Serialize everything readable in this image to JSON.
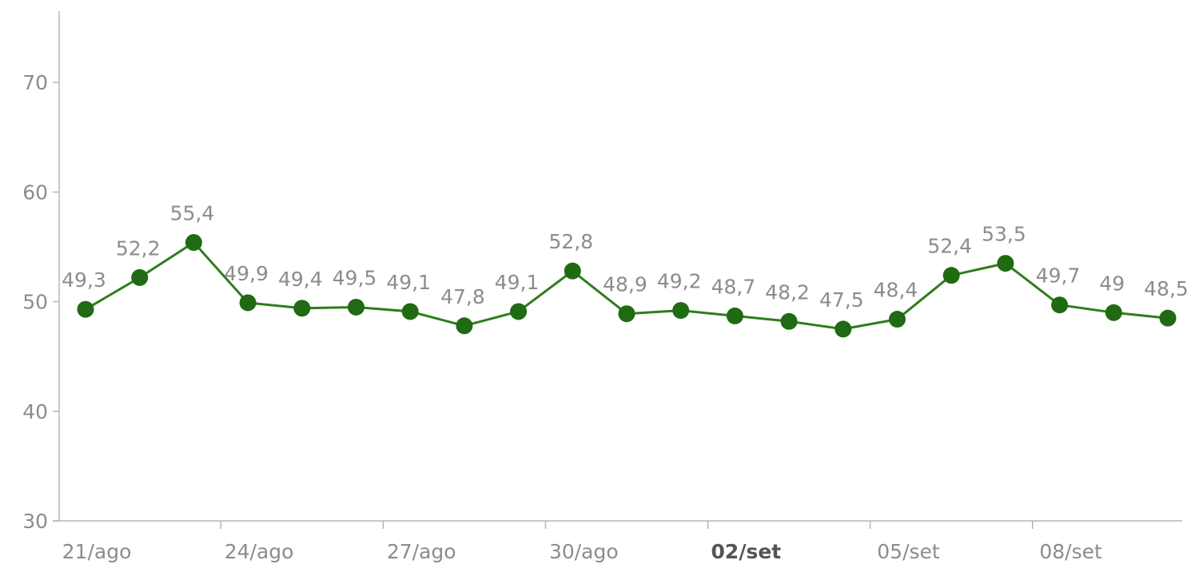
{
  "chart_data": {
    "type": "line",
    "title": "",
    "xlabel": "",
    "ylabel": "",
    "ylim": [
      30,
      75
    ],
    "yticks": [
      "30",
      "40",
      "50",
      "60",
      "70"
    ],
    "grid": false,
    "legend": "none",
    "line_color": "#2e7d1b",
    "marker_color": "#1f6a12",
    "x": [
      "21/ago",
      "22/ago",
      "23/ago",
      "24/ago",
      "25/ago",
      "26/ago",
      "27/ago",
      "28/ago",
      "29/ago",
      "30/ago",
      "31/ago",
      "01/set",
      "02/set",
      "03/set",
      "04/set",
      "05/set",
      "06/set",
      "07/set",
      "08/set",
      "09/set",
      "10/set"
    ],
    "values": [
      49.3,
      52.2,
      55.4,
      49.9,
      49.4,
      49.5,
      49.1,
      47.8,
      49.1,
      52.8,
      48.9,
      49.2,
      48.7,
      48.2,
      47.5,
      48.4,
      52.4,
      53.5,
      49.7,
      49,
      48.5
    ],
    "value_labels": [
      "49,3",
      "52,2",
      "55,4",
      "49,9",
      "49,4",
      "49,5",
      "49,1",
      "47,8",
      "49,1",
      "52,8",
      "48,9",
      "49,2",
      "48,7",
      "48,2",
      "47,5",
      "48,4",
      "52,4",
      "53,5",
      "49,7",
      "49",
      "48,5"
    ],
    "xtick_labels": [
      {
        "label": "21/ago",
        "emphasis": false
      },
      {
        "label": "24/ago",
        "emphasis": false
      },
      {
        "label": "27/ago",
        "emphasis": false
      },
      {
        "label": "30/ago",
        "emphasis": false
      },
      {
        "label": "02/set",
        "emphasis": true
      },
      {
        "label": "05/set",
        "emphasis": false
      },
      {
        "label": "08/set",
        "emphasis": false
      }
    ]
  }
}
